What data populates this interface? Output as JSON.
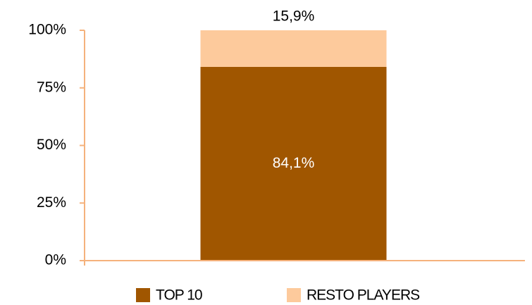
{
  "chart_data": {
    "type": "stacked_bar",
    "categories": [
      null
    ],
    "series": [
      {
        "name": "TOP 10",
        "color": "#a05600",
        "values": [
          84.1
        ],
        "value_labels": [
          "84,1%"
        ]
      },
      {
        "name": "RESTO PLAYERS",
        "color": "#fdca9c",
        "values": [
          15.9
        ],
        "value_labels": [
          "15,9%"
        ]
      }
    ],
    "ylim": [
      0,
      100
    ],
    "yticks": [
      {
        "value": 0,
        "label": "0%"
      },
      {
        "value": 25,
        "label": "25%"
      },
      {
        "value": 50,
        "label": "50%"
      },
      {
        "value": 75,
        "label": "75%"
      },
      {
        "value": 100,
        "label": "100%"
      }
    ],
    "axis_color": "#f5b27c",
    "legend": "bottom"
  }
}
